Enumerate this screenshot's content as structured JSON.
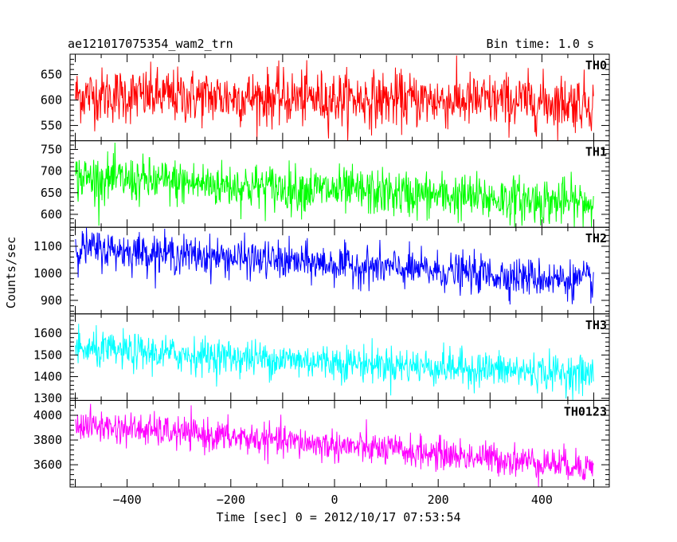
{
  "header": {
    "left_title": "ae121017075354_wam2_trn",
    "right_title": "Bin time: 1.0 s"
  },
  "chart_data": {
    "type": "line",
    "xlabel": "Time [sec] 0 = 2012/10/17 07:53:54",
    "ylabel": "Counts/sec",
    "xlim": [
      -510,
      530
    ],
    "x_ticks": [
      -400,
      -200,
      0,
      200,
      400
    ],
    "x_range": [
      -499.5,
      499.5
    ],
    "bin_time": 1.0,
    "panels": [
      {
        "name": "TH0",
        "color": "#ff0000",
        "ylim": [
          520,
          690
        ],
        "y_ticks": [
          550,
          600,
          650
        ],
        "start": 610,
        "end": 595,
        "noise": 27
      },
      {
        "name": "TH1",
        "color": "#00ff00",
        "ylim": [
          570,
          770
        ],
        "y_ticks": [
          600,
          650,
          700,
          750
        ],
        "start": 685,
        "end": 625,
        "noise": 27
      },
      {
        "name": "TH2",
        "color": "#0000ff",
        "ylim": [
          850,
          1170
        ],
        "y_ticks": [
          900,
          1000,
          1100
        ],
        "start": 1095,
        "end": 970,
        "noise": 35
      },
      {
        "name": "TH3",
        "color": "#00ffff",
        "ylim": [
          1290,
          1690
        ],
        "y_ticks": [
          1300,
          1400,
          1500,
          1600
        ],
        "start": 1525,
        "end": 1410,
        "noise": 42
      },
      {
        "name": "TH0123",
        "color": "#ff00ff",
        "ylim": [
          3420,
          4120
        ],
        "y_ticks": [
          3600,
          3800,
          4000
        ],
        "start": 3925,
        "end": 3585,
        "noise": 65
      }
    ]
  }
}
